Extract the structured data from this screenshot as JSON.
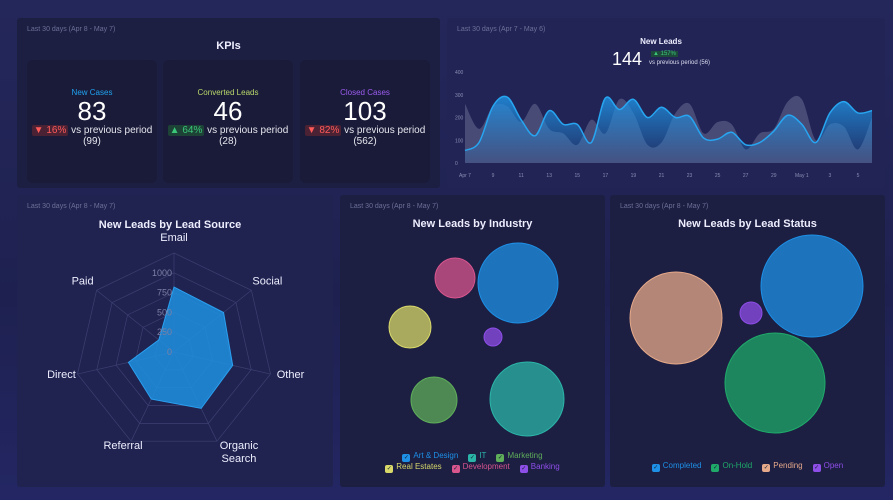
{
  "kpis": {
    "period": "Last 30 days (Apr 8 - May 7)",
    "title": "KPIs",
    "cards": [
      {
        "label": "New Cases",
        "value": "83",
        "change": "▼ 16%",
        "direction": "down",
        "vs": "vs previous period",
        "prev": "(99)",
        "color": "#1fa3f0"
      },
      {
        "label": "Converted Leads",
        "value": "46",
        "change": "▲ 64%",
        "direction": "up",
        "vs": "vs previous period",
        "prev": "(28)",
        "color": "#b9d86a"
      },
      {
        "label": "Closed Cases",
        "value": "103",
        "change": "▼ 82%",
        "direction": "down",
        "vs": "vs previous period",
        "prev": "(562)",
        "color": "#9b5cf0"
      }
    ]
  },
  "new_leads": {
    "period": "Last 30 days (Apr 7 - May 6)",
    "title": "New Leads",
    "value": "144",
    "change": "▲ 157%",
    "vs": "vs previous period (56)"
  },
  "lead_source": {
    "period": "Last 30 days (Apr 8 - May 7)",
    "title": "New Leads by Lead Source"
  },
  "industry": {
    "period": "Last 30 days (Apr 8 - May 7)",
    "title": "New Leads by Industry"
  },
  "status": {
    "period": "Last 30 days (Apr 8 - May 7)",
    "title": "New Leads by Lead Status"
  },
  "chart_data": [
    {
      "type": "area",
      "yticks": [
        "0",
        "100",
        "200",
        "300",
        "400"
      ],
      "ylim": [
        0,
        400
      ],
      "xticks": [
        "Apr 7",
        "9",
        "11",
        "13",
        "15",
        "17",
        "19",
        "21",
        "23",
        "25",
        "27",
        "29",
        "May 1",
        "3",
        "5"
      ],
      "x": [
        "Apr 7",
        "Apr 8",
        "Apr 9",
        "Apr 10",
        "Apr 11",
        "Apr 12",
        "Apr 13",
        "Apr 14",
        "Apr 15",
        "Apr 16",
        "Apr 17",
        "Apr 18",
        "Apr 19",
        "Apr 20",
        "Apr 21",
        "Apr 22",
        "Apr 23",
        "Apr 24",
        "Apr 25",
        "Apr 26",
        "Apr 27",
        "Apr 28",
        "Apr 29",
        "Apr 30",
        "May 1",
        "May 2",
        "May 3",
        "May 4",
        "May 5",
        "May 6"
      ],
      "series": [
        {
          "values": [
            260,
            150,
            250,
            250,
            180,
            260,
            150,
            130,
            80,
            190,
            130,
            280,
            220,
            80,
            90,
            220,
            260,
            130,
            180,
            170,
            60,
            130,
            150,
            270,
            280,
            100,
            170,
            160,
            60,
            200
          ],
          "color": "#5a5c86"
        },
        {
          "values": [
            55,
            90,
            250,
            290,
            190,
            120,
            230,
            170,
            170,
            90,
            285,
            235,
            280,
            200,
            245,
            200,
            205,
            110,
            105,
            135,
            80,
            90,
            140,
            210,
            170,
            90,
            220,
            270,
            220,
            230
          ],
          "color": "#27a5f0"
        }
      ]
    },
    {
      "type": "radar",
      "categories": [
        "Email",
        "Social",
        "Other",
        "Organic Search",
        "Referral",
        "Direct",
        "Paid"
      ],
      "values": [
        820,
        800,
        760,
        790,
        660,
        590,
        245
      ],
      "rticks": [
        "0",
        "250",
        "500",
        "750",
        "1000"
      ],
      "rmax": 1250,
      "color": "#1f8fe0"
    },
    {
      "type": "bubble",
      "legend": [
        "Art & Design",
        "IT",
        "Marketing",
        "Real Estates",
        "Development",
        "Banking"
      ],
      "bubbles": [
        {
          "name": "Art & Design",
          "size": 40,
          "color": "#1e90e6"
        },
        {
          "name": "IT",
          "size": 37,
          "color": "#2bb5a8"
        },
        {
          "name": "Marketing",
          "size": 23,
          "color": "#5fae5a"
        },
        {
          "name": "Real Estates",
          "size": 21,
          "color": "#d9d96a"
        },
        {
          "name": "Development",
          "size": 20,
          "color": "#d8558e"
        },
        {
          "name": "Banking",
          "size": 9,
          "color": "#8e4ee8"
        }
      ]
    },
    {
      "type": "bubble",
      "legend": [
        "Completed",
        "On-Hold",
        "Pending",
        "Open"
      ],
      "bubbles": [
        {
          "name": "Completed",
          "size": 51,
          "color": "#1e90e6"
        },
        {
          "name": "On-Hold",
          "size": 50,
          "color": "#1faa6a"
        },
        {
          "name": "Pending",
          "size": 46,
          "color": "#e6a98a"
        },
        {
          "name": "Open",
          "size": 11,
          "color": "#8e4ee8"
        }
      ]
    }
  ]
}
